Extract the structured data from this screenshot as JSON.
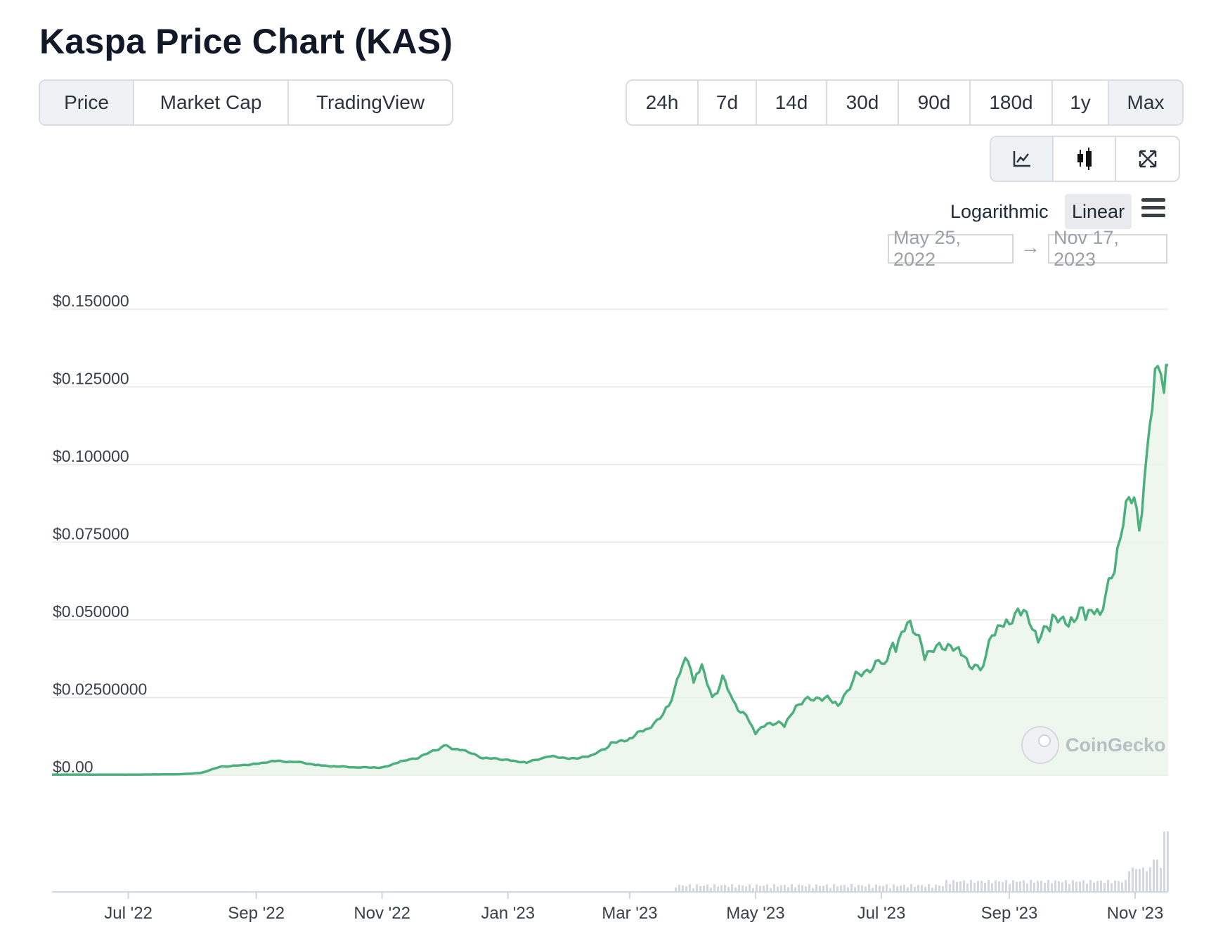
{
  "title": "Kaspa Price Chart (KAS)",
  "type_tabs": [
    {
      "label": "Price",
      "active": true
    },
    {
      "label": "Market Cap",
      "active": false
    },
    {
      "label": "TradingView",
      "active": false
    }
  ],
  "range_tabs": [
    {
      "label": "24h",
      "active": false
    },
    {
      "label": "7d",
      "active": false
    },
    {
      "label": "14d",
      "active": false
    },
    {
      "label": "30d",
      "active": false
    },
    {
      "label": "90d",
      "active": false
    },
    {
      "label": "180d",
      "active": false
    },
    {
      "label": "1y",
      "active": false
    },
    {
      "label": "Max",
      "active": true
    }
  ],
  "view_tabs": [
    {
      "icon": "line-chart-icon",
      "active": true
    },
    {
      "icon": "candlestick-icon",
      "active": false
    },
    {
      "icon": "fullscreen-icon",
      "active": false
    }
  ],
  "scale": {
    "logarithmic": "Logarithmic",
    "linear": "Linear",
    "selected": "Linear"
  },
  "date_range": {
    "from": "May 25, 2022",
    "to": "Nov 17, 2023",
    "arrow": "→"
  },
  "watermark": "CoinGecko",
  "colors": {
    "line": "#4caf7d",
    "fill": "#e8f5e9",
    "grid": "#e6e6e6",
    "volume": "#d3d8e0"
  },
  "chart_data": {
    "type": "line",
    "title": "Kaspa Price Chart (KAS)",
    "series": [
      {
        "x": [
          "2022-05-25",
          "2022-06-15",
          "2022-07-05",
          "2022-07-25",
          "2022-08-05",
          "2022-08-15",
          "2022-08-25",
          "2022-09-01",
          "2022-09-10",
          "2022-09-20",
          "2022-10-01",
          "2022-10-10",
          "2022-10-20",
          "2022-11-01",
          "2022-11-10",
          "2022-11-20",
          "2022-12-01",
          "2022-12-10",
          "2022-12-20",
          "2023-01-01",
          "2023-01-10",
          "2023-01-20",
          "2023-02-01",
          "2023-02-10",
          "2023-02-20",
          "2023-03-01",
          "2023-03-10",
          "2023-03-20",
          "2023-03-28",
          "2023-04-01",
          "2023-04-05",
          "2023-04-10",
          "2023-04-15",
          "2023-04-20",
          "2023-04-25",
          "2023-05-01",
          "2023-05-08",
          "2023-05-15",
          "2023-05-22",
          "2023-06-01",
          "2023-06-10",
          "2023-06-20",
          "2023-07-01",
          "2023-07-08",
          "2023-07-15",
          "2023-07-22",
          "2023-08-01",
          "2023-08-10",
          "2023-08-18",
          "2023-08-25",
          "2023-09-01",
          "2023-09-08",
          "2023-09-15",
          "2023-09-22",
          "2023-10-01",
          "2023-10-08",
          "2023-10-15",
          "2023-10-22",
          "2023-10-29",
          "2023-11-03",
          "2023-11-08",
          "2023-11-12",
          "2023-11-15",
          "2023-11-17"
        ],
        "y": [
          0.0002,
          0.0002,
          0.0002,
          0.0003,
          0.0007,
          0.0028,
          0.0032,
          0.0038,
          0.0045,
          0.0043,
          0.0033,
          0.0028,
          0.0025,
          0.0025,
          0.0043,
          0.006,
          0.0095,
          0.008,
          0.0055,
          0.005,
          0.004,
          0.006,
          0.0055,
          0.006,
          0.01,
          0.012,
          0.015,
          0.022,
          0.04,
          0.03,
          0.034,
          0.025,
          0.031,
          0.024,
          0.02,
          0.014,
          0.017,
          0.016,
          0.023,
          0.025,
          0.023,
          0.033,
          0.036,
          0.042,
          0.05,
          0.038,
          0.042,
          0.038,
          0.034,
          0.046,
          0.049,
          0.052,
          0.043,
          0.049,
          0.051,
          0.052,
          0.052,
          0.065,
          0.09,
          0.08,
          0.113,
          0.132,
          0.12,
          0.132
        ]
      }
    ],
    "y_ticks": [
      "$0.00",
      "$0.02500000",
      "$0.050000",
      "$0.075000",
      "$0.100000",
      "$0.125000",
      "$0.150000"
    ],
    "x_ticks": [
      "Jul '22",
      "Sep '22",
      "Nov '22",
      "Jan '23",
      "Mar '23",
      "May '23",
      "Jul '23",
      "Sep '23",
      "Nov '23"
    ],
    "ylim": [
      0,
      0.15
    ],
    "xlim": [
      "2022-05-25",
      "2023-11-17"
    ],
    "grid": true,
    "volume": {
      "shown": true
    }
  }
}
